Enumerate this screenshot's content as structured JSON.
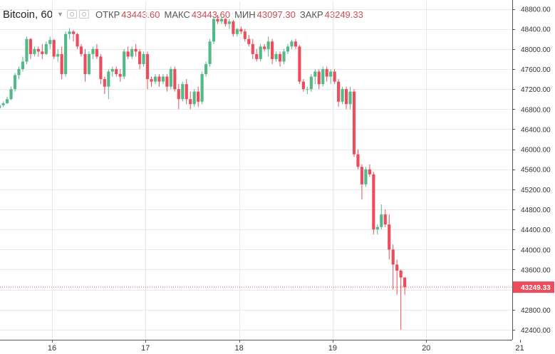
{
  "legend": {
    "symbol": "Bitcoin, 60",
    "open_label": "ОТКР",
    "open": "43443.60",
    "high_label": "МАКС",
    "high": "43443.60",
    "low_label": "МИН",
    "low": "43097.30",
    "close_label": "ЗАКР",
    "close": "43249.33"
  },
  "colors": {
    "up": "#53b987",
    "down": "#eb4d5c",
    "grid": "#e8e8e8",
    "price_line": "#eb4d5c"
  },
  "chart_data": {
    "type": "candlestick",
    "title": "",
    "xlabel": "",
    "ylabel": "",
    "ylim": [
      42200,
      48950
    ],
    "x_ticks": [
      "16",
      "17",
      "18",
      "19",
      "20",
      "21"
    ],
    "y_ticks": [
      42400,
      42800,
      43200,
      43600,
      44000,
      44400,
      44800,
      45200,
      45600,
      46000,
      46400,
      46800,
      47200,
      47600,
      48000,
      48400,
      48800
    ],
    "y_tick_labels": [
      "42400.00",
      "42800.00",
      "43200.00",
      "43600.00",
      "44000.00",
      "44400.00",
      "44800.00",
      "45200.00",
      "45600.00",
      "46000.00",
      "46400.00",
      "46800.00",
      "47200.00",
      "47600.00",
      "48000.00",
      "48400.00",
      "48800.00"
    ],
    "last_price": 43249.33,
    "last_price_label": "43249.33",
    "hours_per_day": 24,
    "first_day_label": "16",
    "first_candle_hour_offset": -15,
    "candles": [
      [
        46850,
        46870,
        46750,
        46820
      ],
      [
        46820,
        46900,
        46800,
        46880
      ],
      [
        46880,
        46950,
        46850,
        46920
      ],
      [
        46920,
        47050,
        46900,
        47000
      ],
      [
        47000,
        47250,
        46980,
        47200
      ],
      [
        47200,
        47520,
        47150,
        47480
      ],
      [
        47480,
        47650,
        47400,
        47600
      ],
      [
        47600,
        47850,
        47550,
        47750
      ],
      [
        47750,
        48250,
        47700,
        48200
      ],
      [
        48200,
        48220,
        47800,
        47900
      ],
      [
        47900,
        48050,
        47850,
        48000
      ],
      [
        48000,
        48050,
        47850,
        47950
      ],
      [
        47950,
        48100,
        47800,
        47900
      ],
      [
        47900,
        48150,
        47880,
        48100
      ],
      [
        48100,
        48250,
        48000,
        48180
      ],
      [
        48180,
        48200,
        47800,
        47850
      ],
      [
        47850,
        48000,
        47750,
        47900
      ],
      [
        47900,
        48050,
        47400,
        47500
      ],
      [
        47500,
        48350,
        47450,
        48300
      ],
      [
        48300,
        48420,
        48200,
        48350
      ],
      [
        48350,
        48380,
        48150,
        48300
      ],
      [
        48300,
        48320,
        48000,
        48050
      ],
      [
        48050,
        48100,
        47850,
        47900
      ],
      [
        47900,
        48000,
        47350,
        47500
      ],
      [
        47500,
        47950,
        47480,
        47900
      ],
      [
        47900,
        48050,
        47800,
        48000
      ],
      [
        48000,
        48100,
        47800,
        47850
      ],
      [
        47850,
        47900,
        47300,
        47400
      ],
      [
        47400,
        47450,
        47100,
        47250
      ],
      [
        47250,
        47600,
        47000,
        47550
      ],
      [
        47550,
        47650,
        47450,
        47600
      ],
      [
        47600,
        47650,
        47450,
        47500
      ],
      [
        47500,
        47600,
        47350,
        47450
      ],
      [
        47450,
        48000,
        47400,
        47950
      ],
      [
        47950,
        48050,
        47800,
        47850
      ],
      [
        47850,
        48050,
        47800,
        48000
      ],
      [
        48000,
        48100,
        47850,
        47950
      ],
      [
        47950,
        48000,
        47600,
        47700
      ],
      [
        47700,
        47950,
        47650,
        47900
      ],
      [
        47900,
        47950,
        47200,
        47400
      ],
      [
        47400,
        47450,
        47250,
        47350
      ],
      [
        47350,
        47500,
        47300,
        47450
      ],
      [
        47450,
        47500,
        47250,
        47350
      ],
      [
        47350,
        47500,
        47300,
        47450
      ],
      [
        47450,
        47500,
        47150,
        47250
      ],
      [
        47250,
        47650,
        47200,
        47600
      ],
      [
        47600,
        47650,
        47150,
        47200
      ],
      [
        47200,
        47300,
        46800,
        47000
      ],
      [
        47000,
        47350,
        46950,
        47300
      ],
      [
        47300,
        47400,
        46900,
        47000
      ],
      [
        47000,
        47150,
        46800,
        46900
      ],
      [
        46900,
        47200,
        46850,
        47150
      ],
      [
        47150,
        47250,
        46850,
        46950
      ],
      [
        46950,
        47550,
        46900,
        47500
      ],
      [
        47500,
        47750,
        47450,
        47700
      ],
      [
        47700,
        48200,
        47650,
        48150
      ],
      [
        48150,
        48650,
        48100,
        48600
      ],
      [
        48600,
        48680,
        48500,
        48550
      ],
      [
        48550,
        48650,
        48500,
        48600
      ],
      [
        48600,
        48620,
        48450,
        48500
      ],
      [
        48500,
        48600,
        48400,
        48550
      ],
      [
        48550,
        48580,
        48250,
        48300
      ],
      [
        48300,
        48420,
        48250,
        48400
      ],
      [
        48400,
        48450,
        48300,
        48350
      ],
      [
        48350,
        48400,
        48150,
        48200
      ],
      [
        48200,
        48280,
        48050,
        48100
      ],
      [
        48100,
        48200,
        47800,
        47900
      ],
      [
        47900,
        48000,
        47750,
        47800
      ],
      [
        47800,
        48100,
        47750,
        48050
      ],
      [
        48050,
        48100,
        47950,
        48000
      ],
      [
        48000,
        48250,
        47850,
        48150
      ],
      [
        48150,
        48200,
        47700,
        47800
      ],
      [
        47800,
        47950,
        47750,
        47900
      ],
      [
        47900,
        47950,
        47650,
        47750
      ],
      [
        47750,
        48000,
        47700,
        47950
      ],
      [
        47950,
        48100,
        47900,
        48050
      ],
      [
        48050,
        48180,
        48000,
        48150
      ],
      [
        48150,
        48200,
        48000,
        48050
      ],
      [
        48050,
        48080,
        47300,
        47350
      ],
      [
        47350,
        47400,
        47150,
        47200
      ],
      [
        47200,
        47250,
        47100,
        47200
      ],
      [
        47200,
        47500,
        47150,
        47450
      ],
      [
        47450,
        47600,
        47300,
        47550
      ],
      [
        47550,
        47600,
        47200,
        47300
      ],
      [
        47300,
        47650,
        47250,
        47600
      ],
      [
        47600,
        47650,
        47350,
        47450
      ],
      [
        47450,
        47600,
        47300,
        47550
      ],
      [
        47550,
        47600,
        47300,
        47350
      ],
      [
        47350,
        47400,
        46850,
        46950
      ],
      [
        46950,
        47250,
        46900,
        47200
      ],
      [
        47200,
        47250,
        46800,
        46900
      ],
      [
        46900,
        47250,
        46800,
        47150
      ],
      [
        47150,
        47200,
        45850,
        45900
      ],
      [
        45900,
        46000,
        45600,
        45650
      ],
      [
        45650,
        45700,
        45000,
        45300
      ],
      [
        45300,
        45650,
        45250,
        45600
      ],
      [
        45600,
        45700,
        45450,
        45500
      ],
      [
        45500,
        45550,
        44300,
        44400
      ],
      [
        44400,
        44500,
        44300,
        44450
      ],
      [
        44450,
        44900,
        44400,
        44700
      ],
      [
        44700,
        44800,
        44450,
        44500
      ],
      [
        44500,
        44700,
        43800,
        44000
      ],
      [
        44000,
        44100,
        43200,
        43700
      ],
      [
        43700,
        43800,
        43100,
        43580
      ],
      [
        43580,
        43600,
        42400,
        43443
      ],
      [
        43443.6,
        43443.6,
        43097.3,
        43249.33
      ]
    ]
  }
}
